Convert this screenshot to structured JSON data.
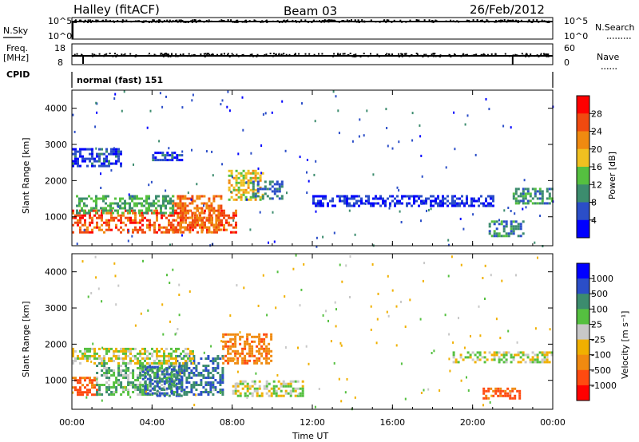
{
  "header": {
    "station": "Halley (fitACF)",
    "beam": "Beam 03",
    "date": "26/Feb/2012"
  },
  "top_panels": {
    "nsky_label": "N.Sky",
    "nsky_high": "10^5",
    "nsky_low": "10^0",
    "nsearch_label": "N.Search",
    "nsearch_high": "10^5",
    "nsearch_low": "10^0",
    "freq_label": "Freq.",
    "freq_unit": "[MHz]",
    "freq_high": "18",
    "freq_low": "8",
    "nave_label": "Nave",
    "nave_high": "60",
    "nave_low": "0",
    "cpid_label": "CPID",
    "cpid_value": "normal (fast) 151"
  },
  "colors": {
    "power_scale": [
      "#0000ff",
      "#2b4ec8",
      "#3c8c6e",
      "#55c040",
      "#f0c020",
      "#f08a10",
      "#f04a10",
      "#ff0000"
    ],
    "velocity_scale": [
      "#ff0000",
      "#ff4a10",
      "#f08a10",
      "#f0b000",
      "#c8c8c8",
      "#55c040",
      "#3c8c6e",
      "#2b4ec8",
      "#0000ff"
    ]
  },
  "chart_data": [
    {
      "type": "heatmap",
      "name": "Power",
      "ylabel": "Slant Range [km]",
      "yticks": [
        "1000",
        "2000",
        "3000",
        "4000"
      ],
      "ylim": [
        200,
        4500
      ],
      "xlim": [
        0,
        24
      ],
      "colorbar_label": "Power [dB]",
      "colorbar_ticks": [
        "4",
        "8",
        "12",
        "16",
        "20",
        "24",
        "28"
      ],
      "colorbar_range": [
        0,
        32
      ],
      "regions": [
        {
          "t0": 0.0,
          "t1": 8.2,
          "r0": 600,
          "r1": 1200,
          "level": 26
        },
        {
          "t0": 5.0,
          "t1": 7.5,
          "r0": 600,
          "r1": 1600,
          "level": 24
        },
        {
          "t0": 0.2,
          "t1": 5.0,
          "r0": 1100,
          "r1": 1600,
          "level": 12
        },
        {
          "t0": 7.8,
          "t1": 9.5,
          "r0": 1500,
          "r1": 2300,
          "level": 18
        },
        {
          "t0": 9.0,
          "t1": 10.5,
          "r0": 1500,
          "r1": 2000,
          "level": 8
        },
        {
          "t0": 0.0,
          "t1": 2.5,
          "r0": 2400,
          "r1": 2900,
          "level": 5
        },
        {
          "t0": 4.0,
          "t1": 5.5,
          "r0": 2600,
          "r1": 2800,
          "level": 5
        },
        {
          "t0": 20.8,
          "t1": 22.5,
          "r0": 500,
          "r1": 900,
          "level": 10
        },
        {
          "t0": 22.0,
          "t1": 24.0,
          "r0": 1400,
          "r1": 1800,
          "level": 10
        },
        {
          "t0": 12.0,
          "t1": 21.0,
          "r0": 1300,
          "r1": 1600,
          "level": 4
        }
      ]
    },
    {
      "type": "heatmap",
      "name": "Velocity",
      "ylabel": "Slant Range [km]",
      "yticks": [
        "1000",
        "2000",
        "3000",
        "4000"
      ],
      "ylim": [
        200,
        4500
      ],
      "xlim": [
        0,
        24
      ],
      "xticks": [
        "00:00",
        "04:00",
        "08:00",
        "12:00",
        "16:00",
        "20:00",
        "00:00"
      ],
      "xlabel": "Time UT",
      "colorbar_label": "Velocity [m s⁻¹]",
      "colorbar_ticks": [
        "1000",
        "500",
        "100",
        "25",
        "-25",
        "-100",
        "-500",
        "-1000"
      ],
      "regions": [
        {
          "t0": 0.0,
          "t1": 1.2,
          "r0": 600,
          "r1": 1100,
          "vel": -300
        },
        {
          "t0": 1.2,
          "t1": 5.2,
          "r0": 600,
          "r1": 1500,
          "vel": 80
        },
        {
          "t0": 3.5,
          "t1": 5.5,
          "r0": 600,
          "r1": 1400,
          "vel": 300
        },
        {
          "t0": 5.2,
          "t1": 7.5,
          "r0": 600,
          "r1": 1700,
          "vel": 300
        },
        {
          "t0": 7.5,
          "t1": 10.0,
          "r0": 1500,
          "r1": 2300,
          "vel": -200
        },
        {
          "t0": 0.0,
          "t1": 6.0,
          "r0": 1500,
          "r1": 1900,
          "vel": 0
        },
        {
          "t0": 8.0,
          "t1": 11.5,
          "r0": 600,
          "r1": 1000,
          "vel": 0
        },
        {
          "t0": 20.5,
          "t1": 22.3,
          "r0": 500,
          "r1": 800,
          "vel": -300
        },
        {
          "t0": 19.0,
          "t1": 24.0,
          "r0": 1500,
          "r1": 1800,
          "vel": 0
        }
      ]
    }
  ]
}
